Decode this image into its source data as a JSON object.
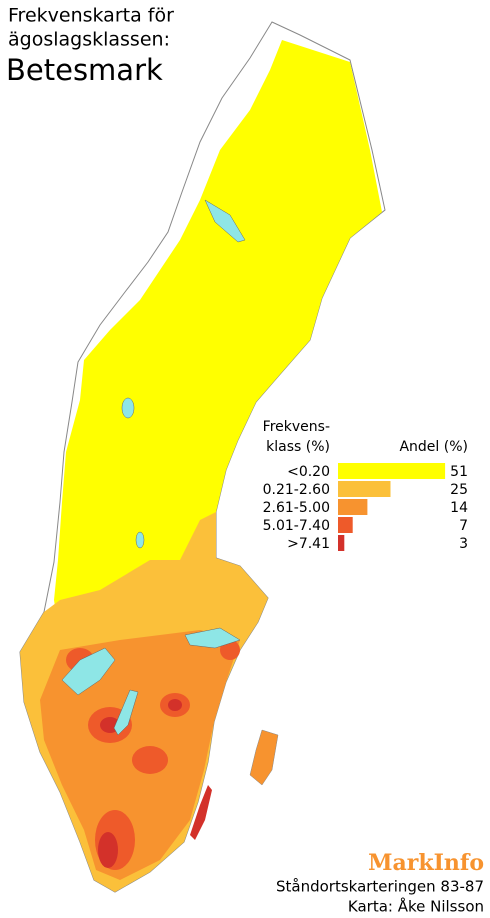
{
  "header": {
    "title_lines": [
      "Frekvenskarta för",
      "ägoslagsklassen:"
    ],
    "subject": "Betesmark"
  },
  "legend": {
    "class_header": [
      "Frekvens-",
      "klass (%)"
    ],
    "share_header": "Andel (%)",
    "items": [
      {
        "class": "<0.20",
        "share": 51,
        "color": "#ffff00"
      },
      {
        "class": "0.21-2.60",
        "share": 25,
        "color": "#fbc03a"
      },
      {
        "class": "2.61-5.00",
        "share": 14,
        "color": "#f7932f"
      },
      {
        "class": "5.01-7.40",
        "share": 7,
        "color": "#ee5a2a"
      },
      {
        "class": ">7.41",
        "share": 3,
        "color": "#d3312a"
      }
    ]
  },
  "footer": {
    "brand": "MarkInfo",
    "lines": [
      "Ståndortskarteringen 83-87",
      "Karta: Åke Nilsson"
    ]
  }
}
